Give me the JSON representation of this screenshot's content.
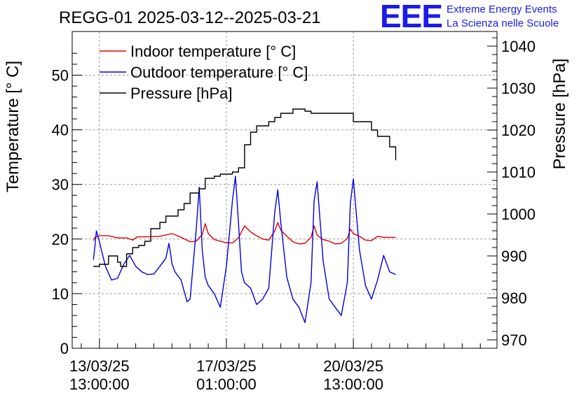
{
  "chart_data": {
    "type": "line",
    "title": "REGG-01 2025-03-12--2025-03-21",
    "ylabel": "Temperature [° C]",
    "y2label": "Pressure [hPa]",
    "ylim": [
      0,
      58
    ],
    "y2lim": [
      968,
      1043.5
    ],
    "xlim_hours": [
      -18,
      263
    ],
    "x_unit": "hours since 13/03/25 13:00:00",
    "grid": true,
    "legend_position": "top-left",
    "yticks": [
      0,
      10,
      20,
      30,
      40,
      50
    ],
    "y2ticks": [
      970,
      980,
      990,
      1000,
      1010,
      1020,
      1030,
      1040
    ],
    "xticks": [
      {
        "hours": 0,
        "date": "13/03/25",
        "time": "13:00:00"
      },
      {
        "hours": 84,
        "date": "17/03/25",
        "time": "01:00:00"
      },
      {
        "hours": 168,
        "date": "20/03/25",
        "time": "13:00:00"
      }
    ],
    "series": [
      {
        "name": "Indoor temperature [° C]",
        "color": "#e00000",
        "axis": "left",
        "x": [
          -4,
          -3,
          0,
          6,
          12,
          18,
          22,
          25,
          30,
          40,
          48,
          55,
          60,
          64,
          68,
          70,
          72,
          76,
          80,
          84,
          88,
          92,
          96,
          100,
          104,
          108,
          112,
          116,
          118,
          120,
          124,
          128,
          132,
          136,
          140,
          142,
          144,
          148,
          152,
          156,
          160,
          164,
          166,
          168,
          172,
          176,
          180,
          184,
          188,
          192,
          196
        ],
        "y": [
          19.7,
          20.3,
          20.6,
          20.6,
          20.2,
          20.2,
          19.8,
          20.4,
          20.4,
          20.5,
          21.0,
          20.2,
          19.5,
          19.6,
          20.8,
          22.8,
          21.0,
          19.9,
          19.6,
          19.3,
          19.3,
          20.2,
          22.4,
          21.3,
          20.6,
          20.0,
          19.8,
          21.5,
          23.0,
          21.6,
          20.5,
          19.5,
          19.1,
          19.2,
          20.3,
          22.4,
          20.7,
          19.9,
          19.6,
          19.1,
          19.2,
          20.1,
          21.8,
          21.0,
          20.5,
          19.8,
          19.7,
          20.5,
          20.3,
          20.3,
          20.3
        ]
      },
      {
        "name": "Outdoor temperature [° C]",
        "color": "#0000e0",
        "axis": "left",
        "x": [
          -4,
          -3,
          -2,
          0,
          4,
          8,
          12,
          16,
          20,
          24,
          28,
          32,
          36,
          40,
          44,
          46,
          47,
          48,
          50,
          54,
          58,
          60,
          64,
          66,
          68,
          70,
          72,
          76,
          80,
          84,
          88,
          90,
          92,
          94,
          96,
          100,
          104,
          108,
          112,
          116,
          118,
          120,
          124,
          128,
          132,
          136,
          140,
          142,
          144,
          148,
          152,
          156,
          160,
          164,
          166,
          168,
          172,
          176,
          180,
          184,
          188,
          192,
          196
        ],
        "y": [
          16.2,
          18.5,
          21.5,
          19.5,
          15.0,
          12.5,
          12.8,
          15.3,
          17.0,
          15.0,
          14.0,
          13.5,
          13.6,
          15.0,
          16.5,
          19.2,
          17.5,
          15.5,
          14.0,
          12.5,
          8.5,
          9.0,
          21.5,
          29.5,
          18.0,
          13.0,
          11.5,
          10.0,
          7.5,
          15.0,
          27.0,
          31.5,
          23.0,
          14.0,
          12.0,
          11.0,
          8.0,
          9.0,
          11.0,
          25.0,
          29.0,
          23.0,
          13.0,
          9.0,
          7.5,
          4.7,
          12.0,
          27.0,
          30.5,
          16.0,
          9.0,
          7.5,
          6.0,
          12.0,
          26.5,
          31.0,
          18.0,
          11.5,
          9.0,
          12.5,
          17.0,
          14.0,
          13.5
        ]
      },
      {
        "name": "Pressure [hPa]",
        "color": "#000000",
        "axis": "right",
        "x": [
          -4,
          0,
          6,
          12,
          14,
          18,
          22,
          26,
          30,
          34,
          36,
          40,
          44,
          48,
          52,
          56,
          60,
          62,
          66,
          70,
          72,
          76,
          80,
          84,
          88,
          92,
          96,
          100,
          104,
          108,
          112,
          116,
          120,
          124,
          128,
          132,
          136,
          140,
          144,
          148,
          152,
          156,
          160,
          164,
          168,
          172,
          176,
          180,
          184,
          188,
          192,
          196
        ],
        "y": [
          987.5,
          988.0,
          990.0,
          988.5,
          987.5,
          990.5,
          992.0,
          992.5,
          993.5,
          996.5,
          996.5,
          998.0,
          999.5,
          999.5,
          1001.0,
          1002.5,
          1005.0,
          1005.0,
          1006.0,
          1008.5,
          1008.5,
          1009.0,
          1009.5,
          1009.5,
          1010.0,
          1011.0,
          1016.5,
          1019.5,
          1021.0,
          1021.0,
          1022.0,
          1023.0,
          1024.0,
          1024.0,
          1025.0,
          1025.0,
          1024.5,
          1024.0,
          1024.0,
          1024.0,
          1024.0,
          1024.0,
          1024.0,
          1024.0,
          1022.0,
          1022.0,
          1022.0,
          1020.0,
          1018.5,
          1018.5,
          1016.0,
          1012.8
        ]
      }
    ]
  },
  "header": {
    "logo_text": "EEE",
    "logo_line1": "Extreme Energy Events",
    "logo_line2": "La Scienza nelle Scuole",
    "logo_color": "#1a1aee"
  }
}
